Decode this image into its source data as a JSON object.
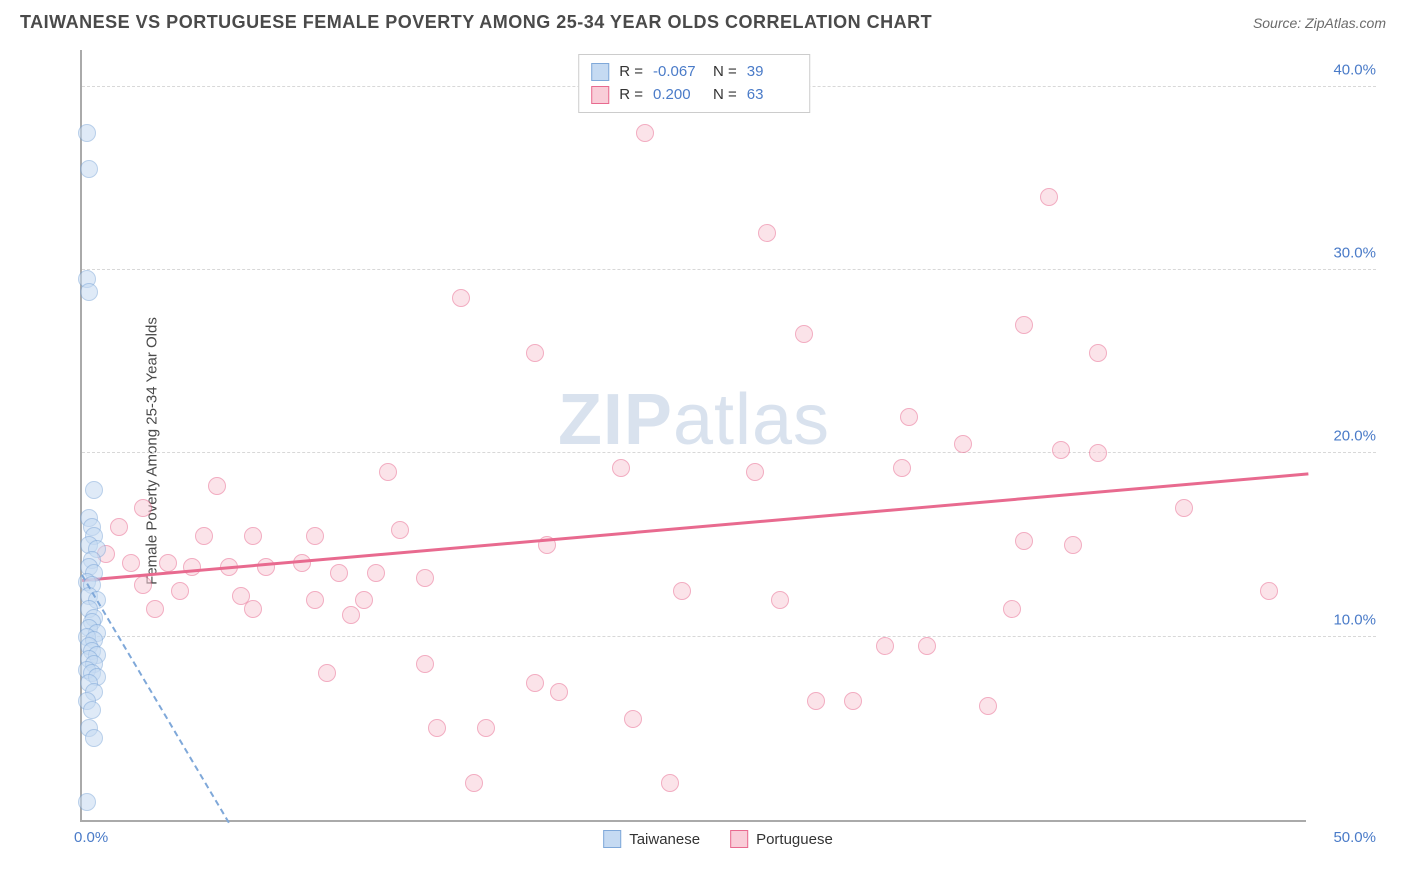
{
  "header": {
    "title": "TAIWANESE VS PORTUGUESE FEMALE POVERTY AMONG 25-34 YEAR OLDS CORRELATION CHART",
    "source_label": "Source: ZipAtlas.com"
  },
  "chart": {
    "type": "scatter",
    "ylabel": "Female Poverty Among 25-34 Year Olds",
    "xlim": [
      0,
      50
    ],
    "ylim": [
      0,
      42
    ],
    "xtick_labels": {
      "0": "0.0%",
      "50": "50.0%"
    },
    "ytick_positions": [
      10,
      20,
      30,
      40
    ],
    "ytick_labels": [
      "10.0%",
      "20.0%",
      "30.0%",
      "40.0%"
    ],
    "background_color": "#ffffff",
    "grid_color": "#d8d8d8",
    "tick_label_color": "#4a7bc8",
    "point_radius": 9,
    "series": {
      "taiwanese": {
        "label": "Taiwanese",
        "color_fill": "#c5daf2",
        "color_stroke": "#7fa8d9",
        "fill_opacity": 0.55,
        "R": "-0.067",
        "N": "39",
        "trend": {
          "x1": 0,
          "y1": 13.5,
          "x2": 6,
          "y2": 0,
          "color": "#7fa8d9",
          "dashed": true
        },
        "points": [
          [
            0.2,
            37.5
          ],
          [
            0.3,
            35.5
          ],
          [
            0.2,
            29.5
          ],
          [
            0.3,
            28.8
          ],
          [
            0.5,
            18.0
          ],
          [
            0.3,
            16.5
          ],
          [
            0.4,
            16.0
          ],
          [
            0.5,
            15.5
          ],
          [
            0.3,
            15.0
          ],
          [
            0.6,
            14.8
          ],
          [
            0.4,
            14.2
          ],
          [
            0.3,
            13.8
          ],
          [
            0.5,
            13.5
          ],
          [
            0.2,
            13.0
          ],
          [
            0.4,
            12.8
          ],
          [
            0.3,
            12.2
          ],
          [
            0.6,
            12.0
          ],
          [
            0.3,
            11.5
          ],
          [
            0.5,
            11.0
          ],
          [
            0.4,
            10.8
          ],
          [
            0.3,
            10.5
          ],
          [
            0.6,
            10.2
          ],
          [
            0.2,
            10.0
          ],
          [
            0.5,
            9.8
          ],
          [
            0.3,
            9.5
          ],
          [
            0.4,
            9.2
          ],
          [
            0.6,
            9.0
          ],
          [
            0.3,
            8.8
          ],
          [
            0.5,
            8.5
          ],
          [
            0.2,
            8.2
          ],
          [
            0.4,
            8.0
          ],
          [
            0.6,
            7.8
          ],
          [
            0.3,
            7.5
          ],
          [
            0.5,
            7.0
          ],
          [
            0.2,
            6.5
          ],
          [
            0.4,
            6.0
          ],
          [
            0.3,
            5.0
          ],
          [
            0.5,
            4.5
          ],
          [
            0.2,
            1.0
          ]
        ]
      },
      "portuguese": {
        "label": "Portuguese",
        "color_fill": "#f9cdd8",
        "color_stroke": "#e86a8f",
        "fill_opacity": 0.55,
        "R": "0.200",
        "N": "63",
        "trend": {
          "x1": 0,
          "y1": 13.2,
          "x2": 50,
          "y2": 19.0,
          "color": "#e86a8f",
          "dashed": false
        },
        "points": [
          [
            23.0,
            37.5
          ],
          [
            39.5,
            34.0
          ],
          [
            28.0,
            32.0
          ],
          [
            15.5,
            28.5
          ],
          [
            38.5,
            27.0
          ],
          [
            29.5,
            26.5
          ],
          [
            18.5,
            25.5
          ],
          [
            41.5,
            25.5
          ],
          [
            33.8,
            22.0
          ],
          [
            36.0,
            20.5
          ],
          [
            40.0,
            20.2
          ],
          [
            41.5,
            20.0
          ],
          [
            22.0,
            19.2
          ],
          [
            27.5,
            19.0
          ],
          [
            33.5,
            19.2
          ],
          [
            12.5,
            19.0
          ],
          [
            5.5,
            18.2
          ],
          [
            2.5,
            17.0
          ],
          [
            45.0,
            17.0
          ],
          [
            1.5,
            16.0
          ],
          [
            5.0,
            15.5
          ],
          [
            7.0,
            15.5
          ],
          [
            9.5,
            15.5
          ],
          [
            13.0,
            15.8
          ],
          [
            38.5,
            15.2
          ],
          [
            40.5,
            15.0
          ],
          [
            19.0,
            15.0
          ],
          [
            1.0,
            14.5
          ],
          [
            2.0,
            14.0
          ],
          [
            3.5,
            14.0
          ],
          [
            4.5,
            13.8
          ],
          [
            6.0,
            13.8
          ],
          [
            7.5,
            13.8
          ],
          [
            9.0,
            14.0
          ],
          [
            10.5,
            13.5
          ],
          [
            12.0,
            13.5
          ],
          [
            14.0,
            13.2
          ],
          [
            2.5,
            12.8
          ],
          [
            4.0,
            12.5
          ],
          [
            6.5,
            12.2
          ],
          [
            9.5,
            12.0
          ],
          [
            11.5,
            12.0
          ],
          [
            24.5,
            12.5
          ],
          [
            48.5,
            12.5
          ],
          [
            3.0,
            11.5
          ],
          [
            7.0,
            11.5
          ],
          [
            11.0,
            11.2
          ],
          [
            28.5,
            12.0
          ],
          [
            38.0,
            11.5
          ],
          [
            32.8,
            9.5
          ],
          [
            34.5,
            9.5
          ],
          [
            10.0,
            8.0
          ],
          [
            14.0,
            8.5
          ],
          [
            18.5,
            7.5
          ],
          [
            30.0,
            6.5
          ],
          [
            31.5,
            6.5
          ],
          [
            37.0,
            6.2
          ],
          [
            14.5,
            5.0
          ],
          [
            16.5,
            5.0
          ],
          [
            19.5,
            7.0
          ],
          [
            22.5,
            5.5
          ],
          [
            16.0,
            2.0
          ],
          [
            24.0,
            2.0
          ]
        ]
      }
    },
    "legend_top": {
      "rows": [
        {
          "swatch": "taiwanese",
          "R": "-0.067",
          "N": "39"
        },
        {
          "swatch": "portuguese",
          "R": "0.200",
          "N": "63"
        }
      ]
    },
    "legend_bottom": [
      {
        "swatch": "taiwanese",
        "label": "Taiwanese"
      },
      {
        "swatch": "portuguese",
        "label": "Portuguese"
      }
    ],
    "watermark": {
      "bold": "ZIP",
      "light": "atlas"
    }
  }
}
